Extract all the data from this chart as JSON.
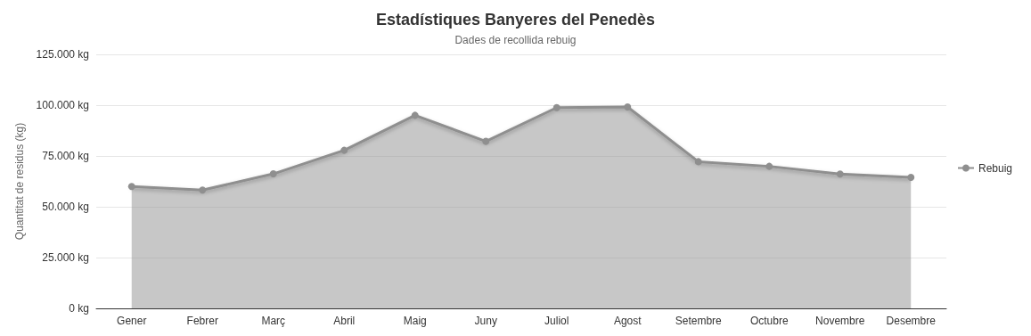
{
  "chart_data": {
    "type": "area",
    "title": "Estadístiques Banyeres del Penedès",
    "subtitle": "Dades de recollida rebuig",
    "ylabel": "Quantitat de residus (kg)",
    "categories": [
      "Gener",
      "Febrer",
      "Març",
      "Abril",
      "Maig",
      "Juny",
      "Juliol",
      "Agost",
      "Setembre",
      "Octubre",
      "Novembre",
      "Desembre"
    ],
    "series": [
      {
        "name": "Rebuig",
        "color": "#8f8f8f",
        "values": [
          60000,
          58200,
          66200,
          77800,
          95000,
          82200,
          98800,
          99100,
          72200,
          69900,
          66100,
          64500
        ]
      }
    ],
    "ylim": [
      0,
      125000
    ],
    "yticks": [
      {
        "value": 0,
        "label": "0 kg"
      },
      {
        "value": 25000,
        "label": "25.000 kg"
      },
      {
        "value": 50000,
        "label": "50.000 kg"
      },
      {
        "value": 75000,
        "label": "75.000 kg"
      },
      {
        "value": 100000,
        "label": "100.000 kg"
      },
      {
        "value": 125000,
        "label": "125.000 kg"
      }
    ],
    "grid": "y",
    "legend": "right",
    "marker": "circle"
  }
}
